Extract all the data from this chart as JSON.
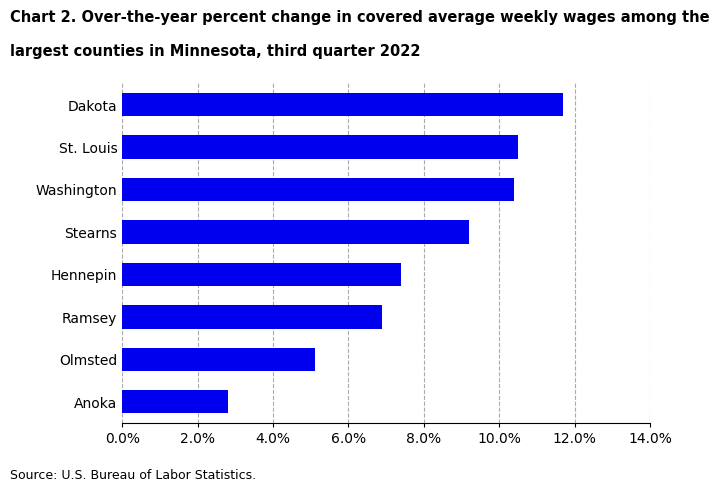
{
  "categories": [
    "Dakota",
    "St. Louis",
    "Washington",
    "Stearns",
    "Hennepin",
    "Ramsey",
    "Olmsted",
    "Anoka"
  ],
  "values": [
    11.7,
    10.5,
    10.4,
    9.2,
    7.4,
    6.9,
    5.1,
    2.8
  ],
  "bar_color": "#0000EE",
  "title_line1": "Chart 2. Over-the-year percent change in covered average weekly wages among the",
  "title_line2": "largest counties in Minnesota, third quarter 2022",
  "xlabel": "",
  "ylabel": "",
  "xlim": [
    0,
    14.0
  ],
  "xticks": [
    0.0,
    2.0,
    4.0,
    6.0,
    8.0,
    10.0,
    12.0,
    14.0
  ],
  "xtick_labels": [
    "0.0%",
    "2.0%",
    "4.0%",
    "6.0%",
    "8.0%",
    "10.0%",
    "12.0%",
    "14.0%"
  ],
  "source_text": "Source: U.S. Bureau of Labor Statistics.",
  "title_fontsize": 10.5,
  "tick_fontsize": 10,
  "source_fontsize": 9,
  "background_color": "#ffffff",
  "grid_color": "#aaaaaa",
  "bar_height": 0.55
}
